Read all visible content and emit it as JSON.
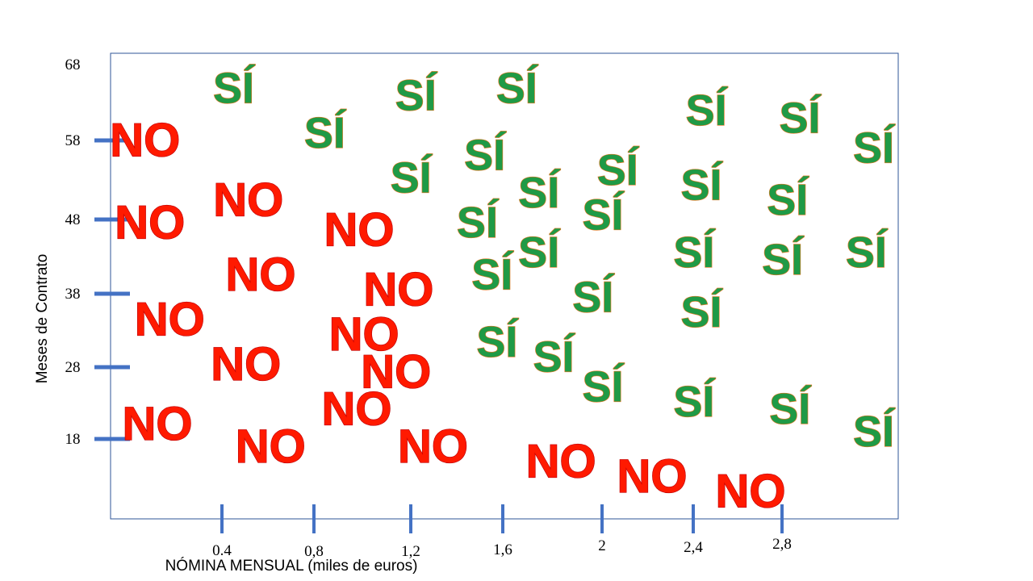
{
  "chart_data": {
    "type": "scatter",
    "title": "",
    "xlabel": "NÓMINA MENSUAL (miles de euros)",
    "ylabel": "Meses de Contrato",
    "x_ticks": [
      "0.4",
      "0,8",
      "1,2",
      "1,6",
      "2",
      "2,4",
      "2,8"
    ],
    "y_ticks": [
      "68",
      "58",
      "48",
      "38",
      "28",
      "18"
    ],
    "xlim": [
      0,
      3.2
    ],
    "ylim": [
      8,
      68
    ],
    "grid": false,
    "legend": "none",
    "colors": {
      "no_fill": "#ff1a00",
      "no_stroke": "#c00000",
      "si_fill": "#1f9a46",
      "si_stroke": "#e87722",
      "axis_ticks": "#4472c4",
      "frame": "#2f5597"
    },
    "series": [
      {
        "label": "NO",
        "points": [
          {
            "x": 0.14,
            "y": 58
          },
          {
            "x": 0.16,
            "y": 47
          },
          {
            "x": 0.56,
            "y": 50
          },
          {
            "x": 0.61,
            "y": 40
          },
          {
            "x": 0.24,
            "y": 34
          },
          {
            "x": 0.55,
            "y": 28
          },
          {
            "x": 0.19,
            "y": 20
          },
          {
            "x": 0.65,
            "y": 17
          },
          {
            "x": 1.01,
            "y": 46
          },
          {
            "x": 1.17,
            "y": 38
          },
          {
            "x": 1.03,
            "y": 32
          },
          {
            "x": 1.16,
            "y": 27
          },
          {
            "x": 1.0,
            "y": 22
          },
          {
            "x": 1.31,
            "y": 17
          },
          {
            "x": 1.83,
            "y": 15
          },
          {
            "x": 2.2,
            "y": 13
          },
          {
            "x": 2.6,
            "y": 11
          }
        ]
      },
      {
        "label": "SÍ",
        "points": [
          {
            "x": 0.5,
            "y": 65
          },
          {
            "x": 0.87,
            "y": 59
          },
          {
            "x": 1.24,
            "y": 64
          },
          {
            "x": 1.65,
            "y": 65
          },
          {
            "x": 1.22,
            "y": 53
          },
          {
            "x": 1.52,
            "y": 56
          },
          {
            "x": 1.74,
            "y": 51
          },
          {
            "x": 2.06,
            "y": 54
          },
          {
            "x": 2.42,
            "y": 62
          },
          {
            "x": 2.8,
            "y": 61
          },
          {
            "x": 3.1,
            "y": 57
          },
          {
            "x": 2.4,
            "y": 52
          },
          {
            "x": 2.75,
            "y": 50
          },
          {
            "x": 1.49,
            "y": 47
          },
          {
            "x": 1.74,
            "y": 43
          },
          {
            "x": 2.0,
            "y": 48
          },
          {
            "x": 2.37,
            "y": 43
          },
          {
            "x": 2.73,
            "y": 42
          },
          {
            "x": 3.07,
            "y": 43
          },
          {
            "x": 1.55,
            "y": 40
          },
          {
            "x": 1.96,
            "y": 37
          },
          {
            "x": 2.4,
            "y": 35
          },
          {
            "x": 1.57,
            "y": 31
          },
          {
            "x": 1.8,
            "y": 29
          },
          {
            "x": 2.0,
            "y": 25
          },
          {
            "x": 2.37,
            "y": 23
          },
          {
            "x": 2.76,
            "y": 22
          },
          {
            "x": 3.1,
            "y": 19
          }
        ]
      }
    ]
  }
}
